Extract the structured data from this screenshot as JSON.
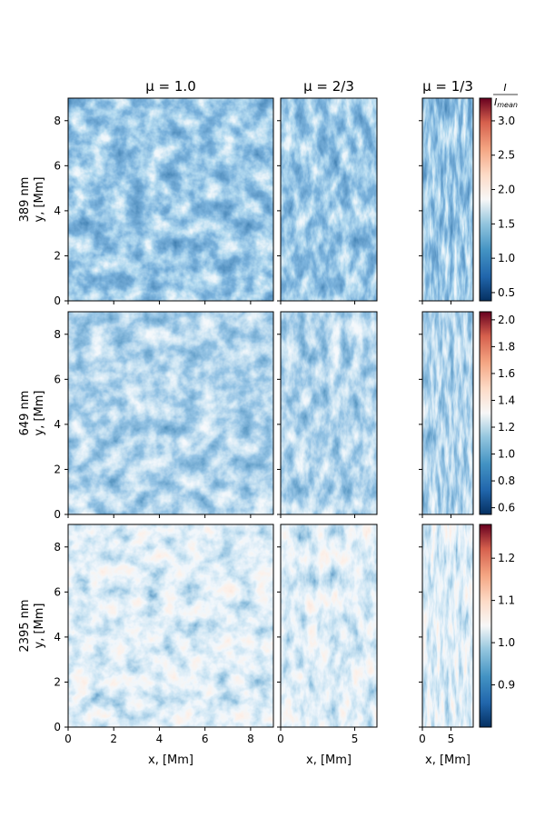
{
  "chart_data": {
    "type": "image-grid",
    "columns": [
      {
        "title": "μ = 1.0",
        "xlim": [
          0,
          9
        ],
        "xticks": [
          0,
          2,
          4,
          6,
          8
        ]
      },
      {
        "title": "μ = 2/3",
        "xlim": [
          0,
          6.5
        ],
        "xticks": [
          0,
          5
        ]
      },
      {
        "title": "μ = 1/3",
        "xlim": [
          0,
          8.9
        ],
        "xticks": [
          0,
          5
        ]
      }
    ],
    "rows": [
      {
        "label": "389 nm",
        "clim": [
          0.38,
          3.33
        ],
        "cticks": [
          0.5,
          {
            "value": 1,
            "label": "1.0"
          },
          1.5,
          {
            "value": 2,
            "label": "2.0"
          },
          2.5,
          {
            "value": 3,
            "label": "3.0"
          }
        ]
      },
      {
        "label": "649 nm",
        "clim": [
          0.55,
          2.06
        ],
        "cticks": [
          0.6,
          0.8,
          {
            "value": 1,
            "label": "1.0"
          },
          1.2,
          1.4,
          1.6,
          1.8,
          {
            "value": 2,
            "label": "2.0"
          }
        ]
      },
      {
        "label": "2395 nm",
        "clim": [
          0.8,
          1.28
        ],
        "cticks": [
          0.9,
          {
            "value": 1,
            "label": "1.0"
          },
          1.1,
          1.2
        ]
      }
    ],
    "xlabel": "x, [Mm]",
    "ylabel": "y, [Mm]",
    "ylim": [
      0,
      9
    ],
    "yticks": [
      0,
      2,
      4,
      6,
      8
    ],
    "colorbar_label": {
      "numerator": "I",
      "denominator": "I",
      "subscript": "mean"
    },
    "colormap": "RdBu_r"
  }
}
